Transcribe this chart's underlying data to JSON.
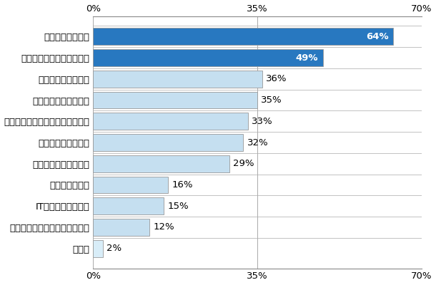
{
  "categories": [
    "効率的な情報収集",
    "効率的なスケジュール管理",
    "解禁日前の事前準備",
    "隙間時間の上手な活用",
    "企業情報の的確なキャッチアップ",
    "適切な情報源の選択",
    "インターネットの活用",
    "土日祝日の活用",
    "IT機器の上手な活用",
    "より高頻度な情報源のチェック",
    "その他"
  ],
  "values": [
    64,
    49,
    36,
    35,
    33,
    32,
    29,
    16,
    15,
    12,
    2
  ],
  "bar_colors": [
    "#2878c0",
    "#2878c0",
    "#c5dff0",
    "#c5dff0",
    "#c5dff0",
    "#c5dff0",
    "#c5dff0",
    "#c5dff0",
    "#c5dff0",
    "#c5dff0",
    "#d8edf8"
  ],
  "xlim": [
    0,
    70
  ],
  "xticks": [
    0,
    35,
    70
  ],
  "xticklabels": [
    "0%",
    "35%",
    "70%"
  ],
  "background_color": "#ffffff",
  "bar_edge_color": "#999999",
  "label_fontsize": 9.5,
  "tick_fontsize": 9.5,
  "value_fontsize": 9.5
}
